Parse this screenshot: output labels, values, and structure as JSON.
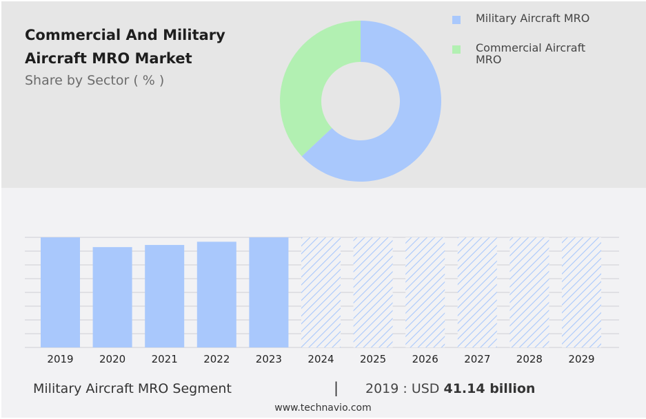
{
  "chart_data": [
    {
      "type": "pie",
      "title": "Commercial And Military Aircraft MRO Market",
      "subtitle": "Share by Sector ( % )",
      "series": [
        {
          "name": "Military Aircraft MRO",
          "value": 63,
          "color": "#a9c8fc"
        },
        {
          "name": "Commercial Aircraft MRO",
          "value": 37,
          "color": "#b2f0b2"
        }
      ],
      "legend": "right"
    },
    {
      "type": "bar",
      "categories": [
        "2019",
        "2020",
        "2021",
        "2022",
        "2023",
        "2024",
        "2025",
        "2026",
        "2027",
        "2028",
        "2029"
      ],
      "values": [
        41.14,
        37.5,
        38.3,
        39.5,
        41.14,
        null,
        null,
        null,
        null,
        null,
        null
      ],
      "ylim": [
        0,
        41.14
      ],
      "bar_color": "#a9c8fc",
      "forecast_style": "hatched",
      "grid": true
    }
  ],
  "footer": {
    "segment": "Military Aircraft MRO Segment",
    "separator": "|",
    "year_prefix": "2019 : USD",
    "value": "41.14 billion"
  },
  "source": "www.technavio.com"
}
